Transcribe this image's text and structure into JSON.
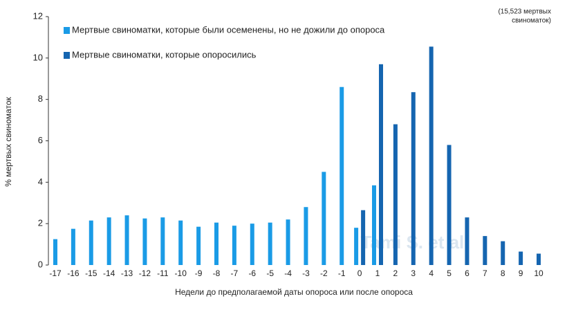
{
  "chart_data": {
    "type": "bar",
    "xlabel": "Недели до предполагаемой даты опороса или после опороса",
    "ylabel": "% мертвых свиноматок",
    "note": [
      "(15,523 мертвых",
      "свиноматок)"
    ],
    "watermark": "Tami S. et al.",
    "categories": [
      "-17",
      "-16",
      "-15",
      "-14",
      "-13",
      "-12",
      "-11",
      "-10",
      "-9",
      "-8",
      "-7",
      "-6",
      "-5",
      "-4",
      "-3",
      "-2",
      "-1",
      "0",
      "1",
      "2",
      "3",
      "4",
      "5",
      "6",
      "7",
      "8",
      "9",
      "10"
    ],
    "series": [
      {
        "name": "Мертвые свиноматки, которые были осеменены, но не дожили до опороса",
        "color": "#1a9be6",
        "values": [
          1.25,
          1.75,
          2.15,
          2.3,
          2.4,
          2.25,
          2.3,
          2.15,
          1.85,
          2.05,
          1.9,
          2.0,
          2.05,
          2.2,
          2.8,
          4.5,
          8.6,
          1.8,
          3.85,
          null,
          null,
          null,
          null,
          null,
          null,
          null,
          null,
          null
        ]
      },
      {
        "name": "Мертвые свиноматки, которые опоросились",
        "color": "#1565b0",
        "values": [
          null,
          null,
          null,
          null,
          null,
          null,
          null,
          null,
          null,
          null,
          null,
          null,
          null,
          null,
          null,
          null,
          null,
          2.65,
          9.7,
          6.8,
          8.35,
          10.55,
          5.8,
          2.3,
          1.4,
          1.15,
          0.65,
          0.55
        ]
      }
    ],
    "ylim": [
      0,
      12
    ],
    "yticks": [
      0,
      2,
      4,
      6,
      8,
      10,
      12
    ],
    "grid": false,
    "legend": "top-left"
  }
}
